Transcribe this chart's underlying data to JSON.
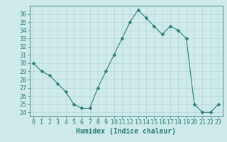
{
  "x": [
    0,
    1,
    2,
    3,
    4,
    5,
    6,
    7,
    8,
    9,
    10,
    11,
    12,
    13,
    14,
    15,
    16,
    17,
    18,
    19,
    20,
    21,
    22,
    23
  ],
  "y": [
    30,
    29,
    28.5,
    27.5,
    26.5,
    25,
    24.5,
    24.5,
    27,
    29,
    31,
    33,
    35,
    36.5,
    35.5,
    34.5,
    33.5,
    34.5,
    34,
    33,
    25,
    24,
    24,
    25
  ],
  "line_color": "#2d7d78",
  "marker_color": "#2d7d78",
  "bg_color": "#ceeaea",
  "grid_color": "#aed4d0",
  "xlabel": "Humidex (Indice chaleur)",
  "xlim": [
    -0.5,
    23.5
  ],
  "ylim": [
    23.5,
    37.0
  ],
  "yticks": [
    24,
    25,
    26,
    27,
    28,
    29,
    30,
    31,
    32,
    33,
    34,
    35,
    36
  ],
  "xticks": [
    0,
    1,
    2,
    3,
    4,
    5,
    6,
    7,
    8,
    9,
    10,
    11,
    12,
    13,
    14,
    15,
    16,
    17,
    18,
    19,
    20,
    21,
    22,
    23
  ],
  "xlabel_fontsize": 7,
  "tick_fontsize": 6,
  "axis_color": "#2d7d78",
  "marker_size": 2.5,
  "linewidth": 0.8
}
